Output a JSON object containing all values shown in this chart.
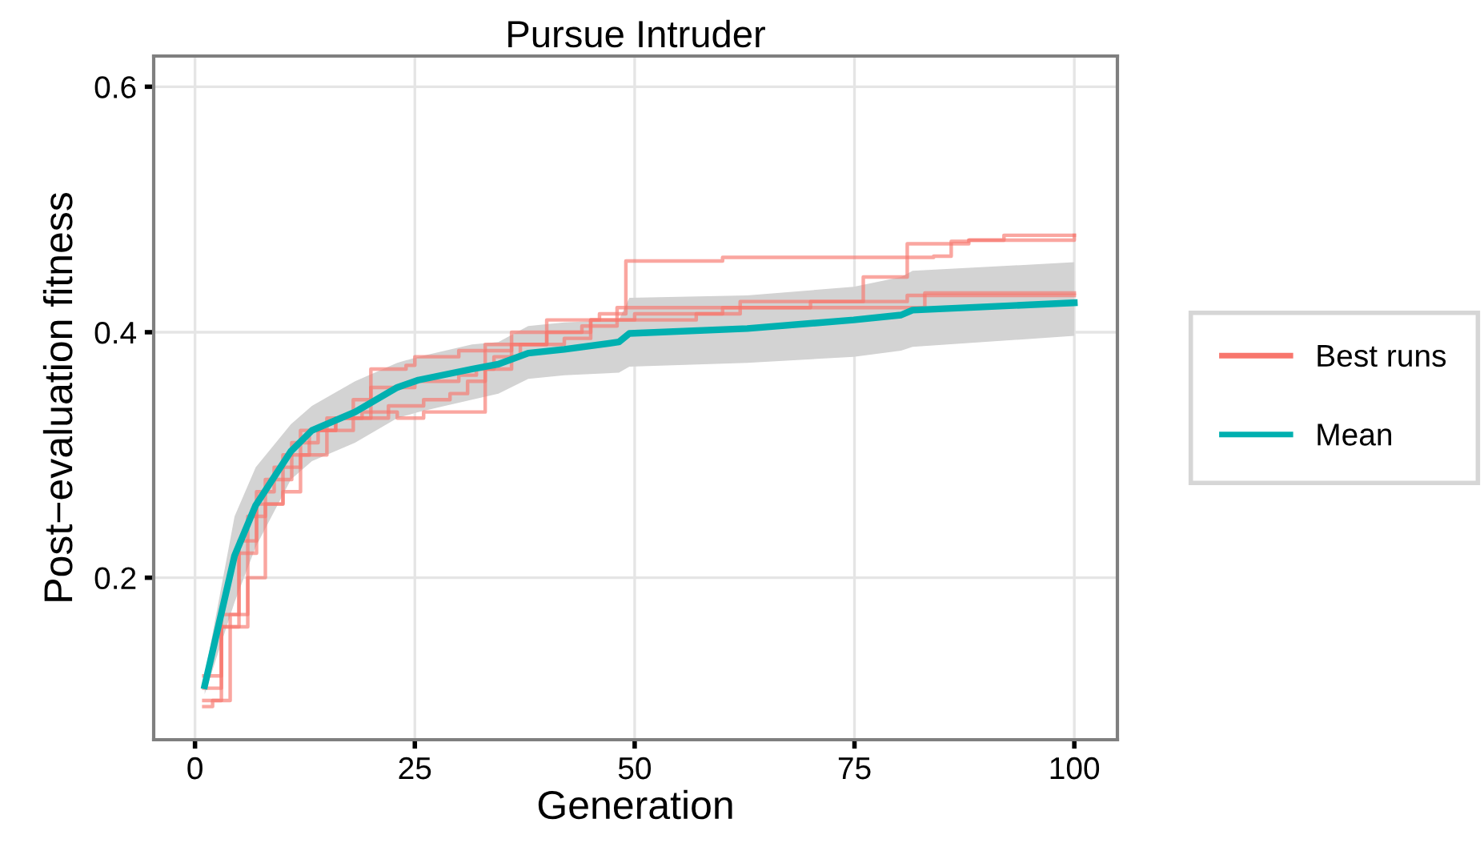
{
  "chart_data": {
    "type": "step",
    "title": "Pursue Intruder",
    "xlabel": "Generation",
    "ylabel": "Post−evaluation fitness",
    "xlim": [
      -4.7,
      104.9
    ],
    "ylim": [
      0.068,
      0.625
    ],
    "xticks": [
      0,
      25,
      50,
      75,
      100
    ],
    "yticks": [
      0.2,
      0.4,
      0.6
    ],
    "grid": true,
    "legend": "right",
    "series": [
      {
        "name": "Best runs",
        "color": "#f8766d",
        "x": [
          1,
          2,
          4,
          6,
          8,
          10,
          12,
          15,
          19,
          22,
          26,
          29,
          31,
          33,
          36,
          40,
          46,
          49,
          60,
          84,
          86,
          88,
          100
        ],
        "values": [
          0.095,
          0.1,
          0.17,
          0.2,
          0.26,
          0.27,
          0.3,
          0.33,
          0.33,
          0.34,
          0.345,
          0.35,
          0.36,
          0.385,
          0.4,
          0.41,
          0.415,
          0.458,
          0.461,
          0.462,
          0.474,
          0.475,
          0.479
        ]
      },
      {
        "color": "#f8766d",
        "x": [
          1,
          3,
          5,
          7,
          9,
          12,
          18,
          20,
          24,
          25,
          30,
          33,
          40,
          45,
          57,
          62,
          76,
          81,
          88,
          92,
          100
        ],
        "values": [
          0.11,
          0.17,
          0.23,
          0.27,
          0.29,
          0.32,
          0.345,
          0.37,
          0.373,
          0.38,
          0.385,
          0.39,
          0.4,
          0.41,
          0.415,
          0.425,
          0.445,
          0.472,
          0.475,
          0.479,
          0.479
        ]
      },
      {
        "color": "#f8766d",
        "x": [
          1,
          3,
          6,
          8,
          11,
          14,
          16,
          20,
          25,
          30,
          32,
          34,
          37,
          42,
          45,
          50,
          60,
          83,
          100
        ],
        "values": [
          0.1,
          0.16,
          0.25,
          0.28,
          0.31,
          0.32,
          0.33,
          0.355,
          0.36,
          0.365,
          0.37,
          0.38,
          0.39,
          0.395,
          0.41,
          0.415,
          0.42,
          0.432,
          0.432
        ]
      },
      {
        "color": "#f8766d",
        "x": [
          1,
          3,
          5,
          7,
          10,
          13,
          16,
          19,
          23,
          26,
          31,
          33,
          36,
          40,
          44,
          48,
          55,
          70,
          81,
          100
        ],
        "values": [
          0.12,
          0.16,
          0.22,
          0.26,
          0.3,
          0.32,
          0.33,
          0.335,
          0.33,
          0.335,
          0.335,
          0.37,
          0.39,
          0.4,
          0.405,
          0.42,
          0.42,
          0.425,
          0.43,
          0.43
        ]
      },
      {
        "name": "Mean",
        "type": "line",
        "color": "#00b0b0",
        "x": [
          1.1,
          4.5,
          6.9,
          10.9,
          13.3,
          18.2,
          23,
          25.4,
          31.5,
          34.5,
          37.9,
          42,
          48.2,
          49.4,
          62.8,
          74.9,
          80.3,
          81.6,
          100
        ],
        "values": [
          0.112,
          0.218,
          0.259,
          0.303,
          0.32,
          0.335,
          0.355,
          0.361,
          0.37,
          0.374,
          0.383,
          0.386,
          0.392,
          0.399,
          0.403,
          0.41,
          0.414,
          0.418,
          0.424
        ],
        "lower": [
          0.105,
          0.18,
          0.225,
          0.28,
          0.295,
          0.31,
          0.33,
          0.335,
          0.345,
          0.35,
          0.362,
          0.365,
          0.367,
          0.372,
          0.375,
          0.38,
          0.385,
          0.388,
          0.397
        ],
        "upper": [
          0.12,
          0.25,
          0.29,
          0.325,
          0.34,
          0.36,
          0.375,
          0.38,
          0.39,
          0.392,
          0.405,
          0.408,
          0.41,
          0.428,
          0.43,
          0.437,
          0.445,
          0.45,
          0.457
        ]
      }
    ]
  }
}
